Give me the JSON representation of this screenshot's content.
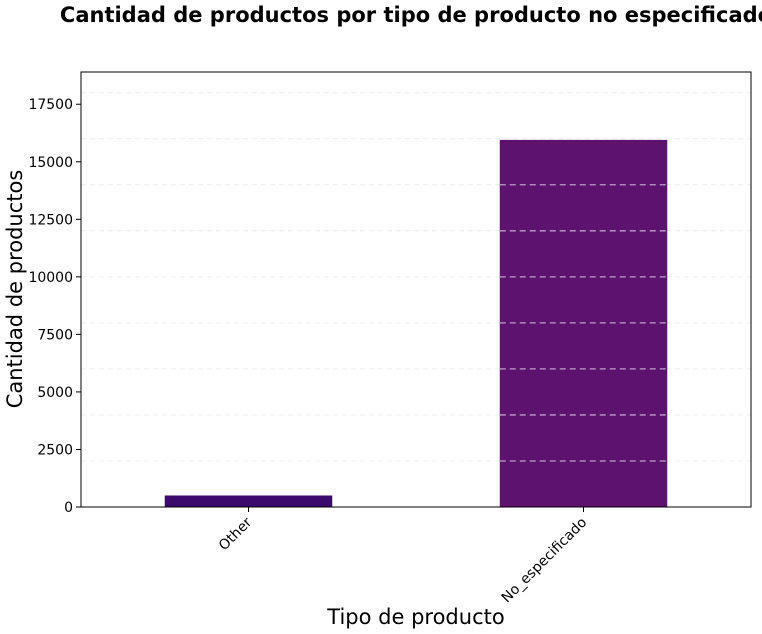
{
  "chart_data": {
    "type": "bar",
    "title": "Cantidad de productos por tipo de producto no especificado",
    "xlabel": "Tipo de producto",
    "ylabel": "Cantidad de productos",
    "categories": [
      "Other",
      "No_especificado"
    ],
    "values": [
      500,
      15950
    ],
    "bar_colors": [
      "#3b0a6b",
      "#5c126e"
    ],
    "ylim": [
      0,
      18900
    ],
    "yticks": [
      0,
      2500,
      5000,
      7500,
      10000,
      12500,
      15000,
      17500
    ],
    "ytick_labels": [
      "0",
      "2500",
      "5000",
      "7500",
      "10000",
      "12500",
      "15000",
      "17500"
    ],
    "grid": {
      "axis": "y",
      "style": "dashed",
      "values": [
        2000,
        4000,
        6000,
        8000,
        10000,
        12000,
        14000,
        16000,
        18000
      ]
    },
    "xtick_rotation": 45,
    "legend": "none"
  }
}
